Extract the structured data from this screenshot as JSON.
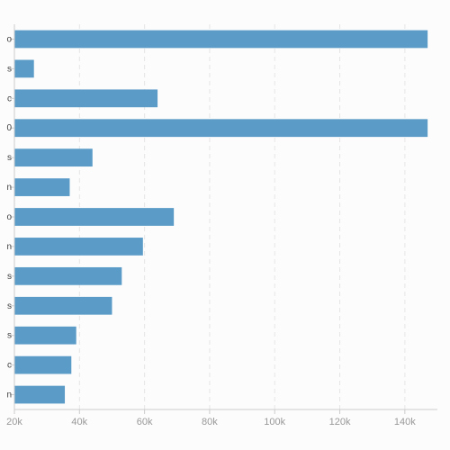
{
  "chart_data": {
    "type": "bar",
    "orientation": "horizontal",
    "categories": [
      "o",
      "s",
      "c",
      "0",
      "s",
      "n",
      "o",
      "n",
      "s",
      "s",
      "s",
      "c",
      "n"
    ],
    "values": [
      147000,
      26000,
      64000,
      147000,
      44000,
      37000,
      69000,
      59500,
      53000,
      50000,
      39000,
      37500,
      35500
    ],
    "xlim": [
      20000,
      150000
    ],
    "xticks": [
      20000,
      40000,
      60000,
      80000,
      100000,
      120000,
      140000
    ],
    "xtick_labels": [
      "20k",
      "40k",
      "60k",
      "80k",
      "100k",
      "120k",
      "140k"
    ],
    "title": "",
    "xlabel": "",
    "ylabel": "",
    "grid": "vertical-dashed",
    "colors": {
      "bar": "#5a9bc8",
      "grid": "#e6e6e6",
      "axis": "#cccccc",
      "tick_text": "#999999",
      "background": "#fcfcfc"
    }
  }
}
